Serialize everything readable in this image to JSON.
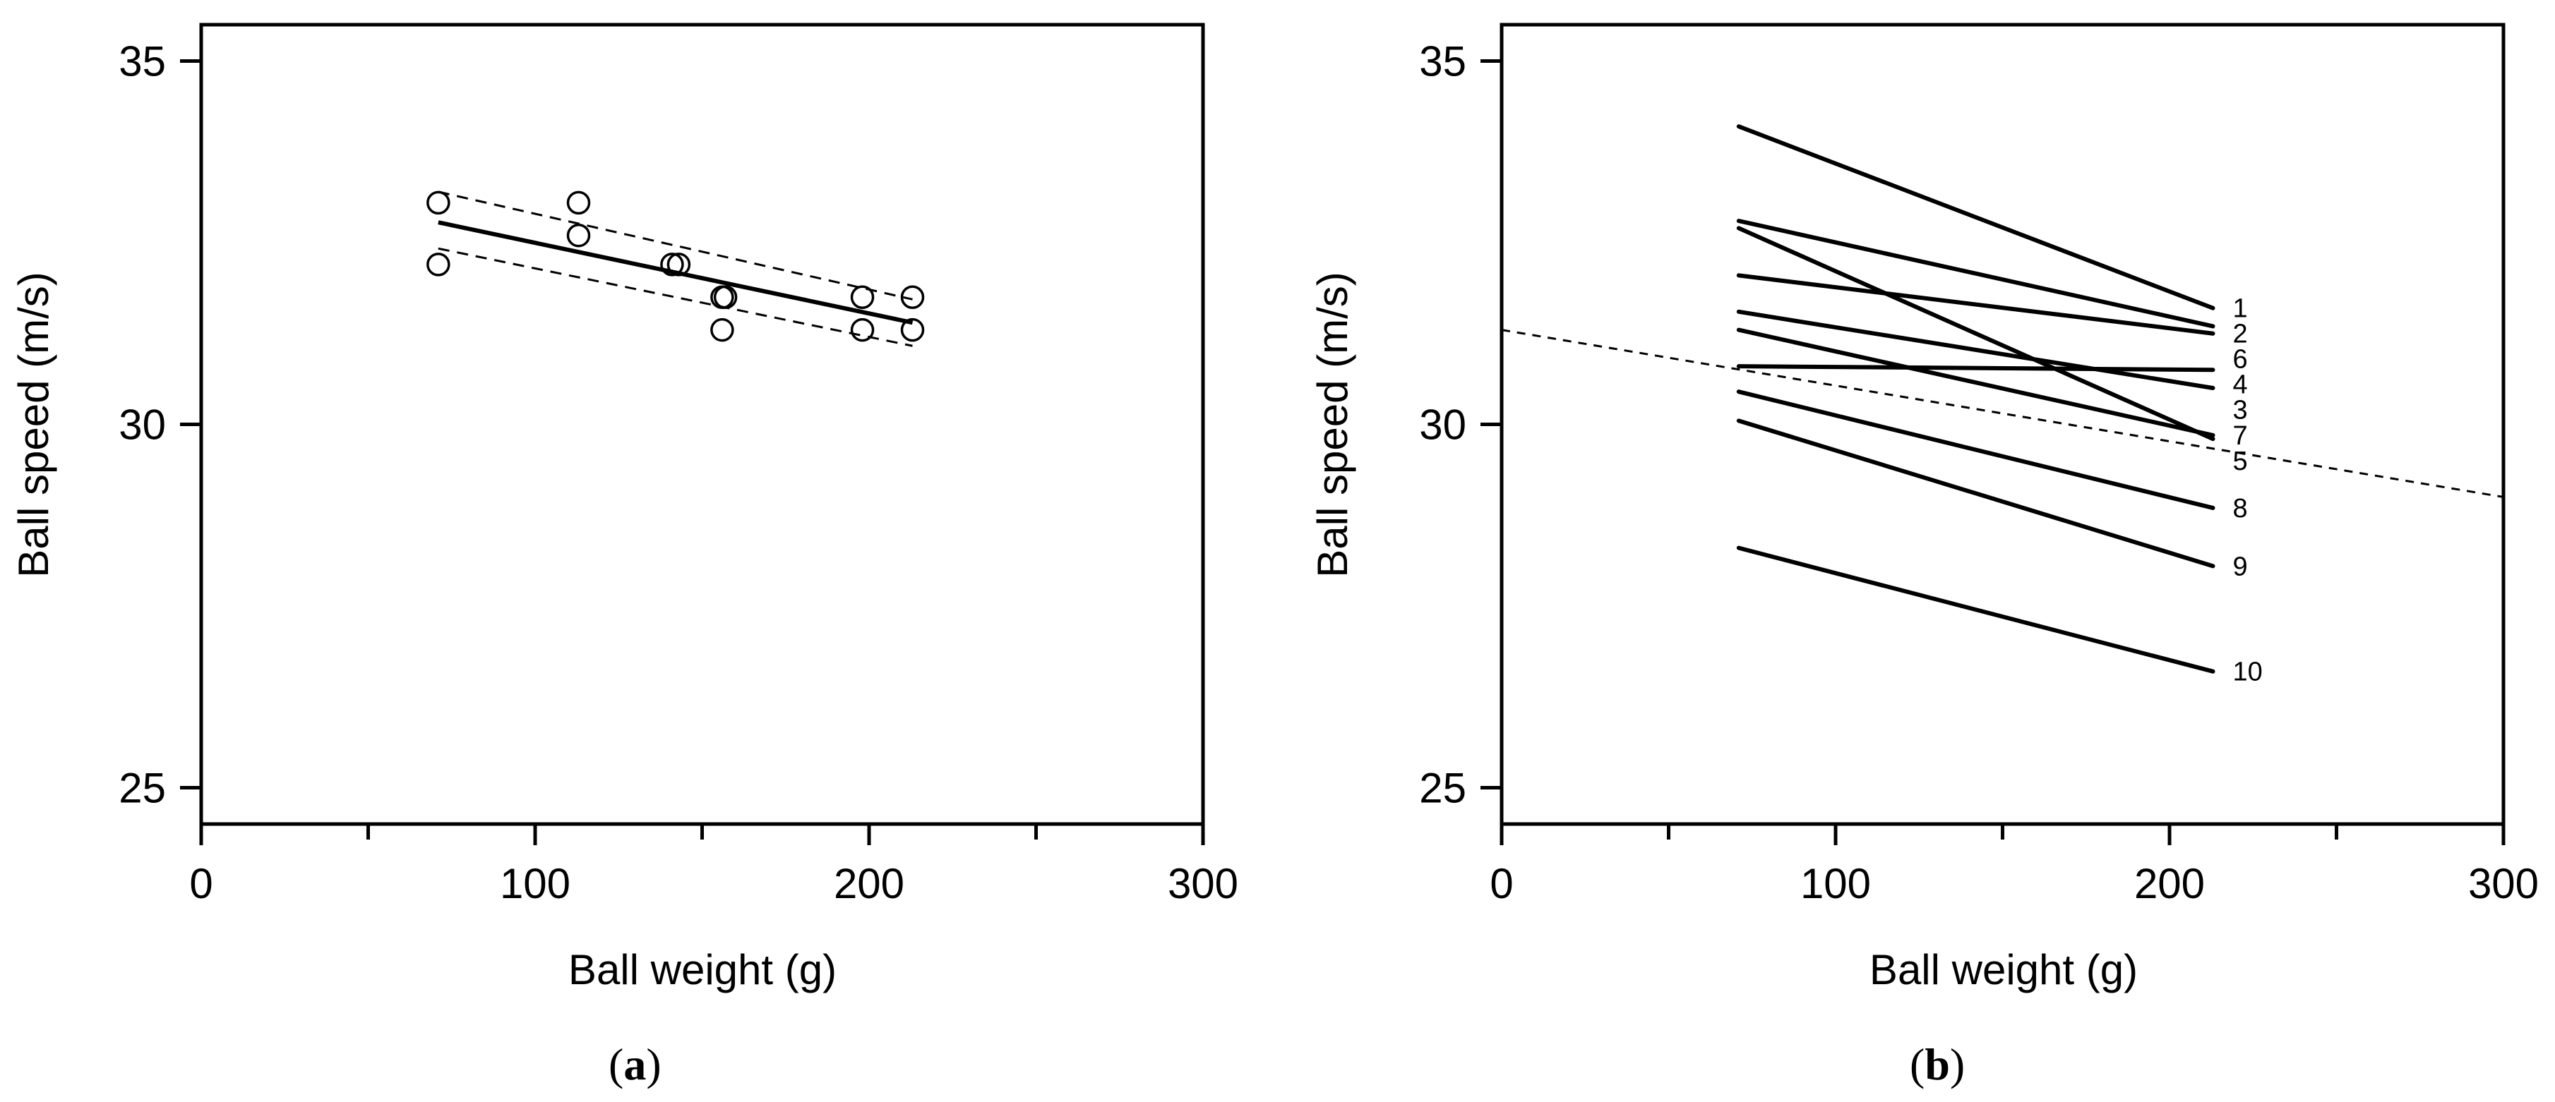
{
  "chart_data": [
    {
      "panel": "(a)",
      "panel_letter": "a",
      "type": "scatter",
      "xlabel": "Ball weight (g)",
      "ylabel": "Ball speed (m/s)",
      "xlim": [
        0,
        300
      ],
      "ylim": [
        24.5,
        35.5
      ],
      "x_major_ticks": [
        0,
        100,
        200,
        300
      ],
      "x_minor_ticks": [
        50,
        150,
        250
      ],
      "y_ticks": [
        25,
        30,
        35
      ],
      "grid": false,
      "points": [
        {
          "x": 71,
          "y": 33.05
        },
        {
          "x": 71,
          "y": 32.2
        },
        {
          "x": 113,
          "y": 33.05
        },
        {
          "x": 113,
          "y": 32.6
        },
        {
          "x": 141,
          "y": 32.2
        },
        {
          "x": 143,
          "y": 32.2
        },
        {
          "x": 156,
          "y": 31.75
        },
        {
          "x": 157,
          "y": 31.75
        },
        {
          "x": 156,
          "y": 31.3
        },
        {
          "x": 198,
          "y": 31.75
        },
        {
          "x": 198,
          "y": 31.3
        },
        {
          "x": 213,
          "y": 31.75
        },
        {
          "x": 213,
          "y": 31.3
        }
      ],
      "regression": {
        "x": [
          71,
          213
        ],
        "y": [
          32.78,
          31.4
        ]
      },
      "confidence_upper": {
        "x": [
          71,
          213
        ],
        "y": [
          33.2,
          31.72
        ]
      },
      "confidence_lower": {
        "x": [
          71,
          213
        ],
        "y": [
          32.42,
          31.08
        ]
      }
    },
    {
      "panel": "(b)",
      "panel_letter": "b",
      "type": "line",
      "xlabel": "Ball weight (g)",
      "ylabel": "Ball speed (m/s)",
      "xlim": [
        0,
        300
      ],
      "ylim": [
        24.5,
        35.5
      ],
      "x_major_ticks": [
        0,
        100,
        200,
        300
      ],
      "x_minor_ticks": [
        50,
        150,
        250
      ],
      "y_ticks": [
        25,
        30,
        35
      ],
      "grid": false,
      "series": [
        {
          "label": "1",
          "x": [
            71,
            213
          ],
          "y": [
            34.1,
            31.6
          ]
        },
        {
          "label": "2",
          "x": [
            71,
            213
          ],
          "y": [
            32.8,
            31.35
          ]
        },
        {
          "label": "6",
          "x": [
            71,
            213
          ],
          "y": [
            32.05,
            31.25
          ]
        },
        {
          "label": "4",
          "x": [
            71,
            213
          ],
          "y": [
            30.8,
            30.75
          ]
        },
        {
          "label": "3",
          "x": [
            71,
            213
          ],
          "y": [
            31.55,
            30.5
          ]
        },
        {
          "label": "5",
          "x": [
            71,
            213
          ],
          "y": [
            32.7,
            29.8
          ]
        },
        {
          "label": "7",
          "x": [
            71,
            213
          ],
          "y": [
            31.3,
            29.85
          ]
        },
        {
          "label": "8",
          "x": [
            71,
            213
          ],
          "y": [
            30.45,
            28.85
          ]
        },
        {
          "label": "9",
          "x": [
            71,
            213
          ],
          "y": [
            30.05,
            28.05
          ]
        },
        {
          "label": "10",
          "x": [
            71,
            213
          ],
          "y": [
            28.3,
            26.6
          ]
        }
      ],
      "reference_line": {
        "x": [
          0,
          300
        ],
        "y": [
          31.3,
          29.0
        ],
        "style": "dashed"
      }
    }
  ]
}
